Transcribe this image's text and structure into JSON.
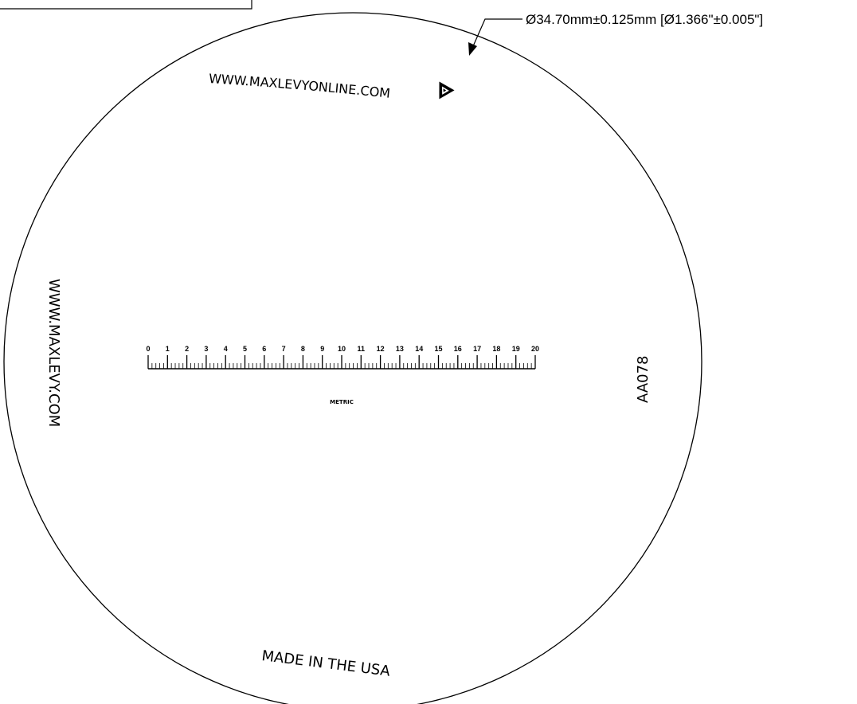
{
  "dimension": {
    "label": "Ø34.70mm±0.125mm [Ø1.366\"±0.005\"]"
  },
  "reticle": {
    "top_text": "WWW.MAXLEVYONLINE.COM",
    "left_text": "WWW.MAXLEVY.COM",
    "right_text": "AA078",
    "bottom_text": "MADE IN THE USA",
    "scale_caption": "METRIC",
    "logo_icon": "maxlevy-logo-icon"
  },
  "scale": {
    "min": 0,
    "max": 20,
    "subdivisions_per_unit": 5,
    "labels": [
      "0",
      "1",
      "2",
      "3",
      "4",
      "5",
      "6",
      "7",
      "8",
      "9",
      "10",
      "11",
      "12",
      "13",
      "14",
      "15",
      "16",
      "17",
      "18",
      "19",
      "20"
    ]
  }
}
